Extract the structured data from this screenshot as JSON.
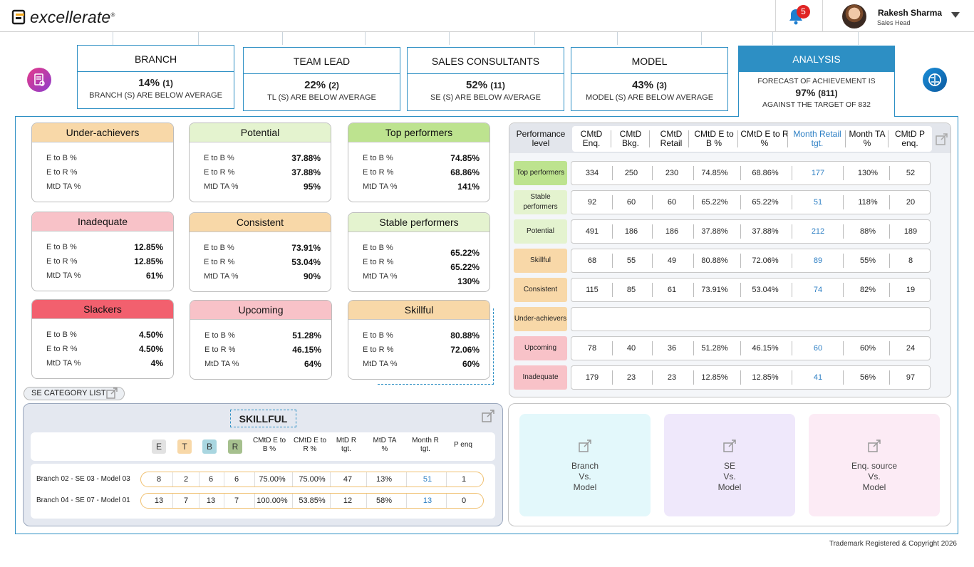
{
  "header": {
    "brand": "excellerate",
    "brand_mark": "®",
    "notifications_count": "5",
    "user_name": "Rakesh Sharma",
    "user_role": "Sales Head"
  },
  "tabs": [
    {
      "title": "BRANCH",
      "pct": "14%",
      "count": "(1)",
      "sub": "BRANCH (S) ARE BELOW AVERAGE"
    },
    {
      "title": "TEAM LEAD",
      "pct": "22%",
      "count": "(2)",
      "sub": "TL (S) ARE BELOW AVERAGE"
    },
    {
      "title": "SALES CONSULTANTS",
      "pct": "52%",
      "count": "(11)",
      "sub": "SE (S) ARE BELOW AVERAGE"
    },
    {
      "title": "MODEL",
      "pct": "43%",
      "count": "(3)",
      "sub": "MODEL (S) ARE BELOW AVERAGE"
    }
  ],
  "analysis": {
    "title": "ANALYSIS",
    "line1": "FORECAST OF ACHIEVEMENT IS",
    "pct": "97%",
    "count": "(811)",
    "line3": "AGAINST THE TARGET OF 832"
  },
  "metric_labels": {
    "eb": "E to B %",
    "er": "E to R %",
    "ta": "MtD TA %"
  },
  "categories": [
    {
      "name": "Under-achievers",
      "eb": "",
      "er": "",
      "ta": "",
      "color": "#f8d8a8"
    },
    {
      "name": "Potential",
      "eb": "37.88%",
      "er": "37.88%",
      "ta": "95%",
      "color": "#e4f3cf"
    },
    {
      "name": "Top performers",
      "eb": "74.85%",
      "er": "68.86%",
      "ta": "141%",
      "color": "#bde38f"
    },
    {
      "name": "Inadequate",
      "eb": "12.85%",
      "er": "12.85%",
      "ta": "61%",
      "color": "#f8c2c8"
    },
    {
      "name": "Consistent",
      "eb": "73.91%",
      "er": "53.04%",
      "ta": "90%",
      "color": "#f8d8a8"
    },
    {
      "name": "Stable performers",
      "eb": "65.22%",
      "er": "65.22%",
      "ta": "130%",
      "color": "#e4f3cf"
    },
    {
      "name": "Slackers",
      "eb": "4.50%",
      "er": "4.50%",
      "ta": "4%",
      "color": "#f2606e"
    },
    {
      "name": "Upcoming",
      "eb": "51.28%",
      "er": "46.15%",
      "ta": "64%",
      "color": "#f8c2c8"
    },
    {
      "name": "Skillful",
      "eb": "80.88%",
      "er": "72.06%",
      "ta": "60%",
      "color": "#f8d8a8"
    }
  ],
  "perf_table": {
    "headers": [
      "Performance level",
      "CMtD Enq.",
      "CMtD Bkg.",
      "CMtD Retail",
      "CMtD E to B %",
      "CMtD E to R %",
      "Month Retail tgt.",
      "Month TA %",
      "CMtD P enq."
    ],
    "rows": [
      {
        "label": "Top performers",
        "color": "#bde38f",
        "cells": [
          "334",
          "250",
          "230",
          "74.85%",
          "68.86%",
          "177",
          "130%",
          "52"
        ]
      },
      {
        "label": "Stable performers",
        "color": "#e4f3cf",
        "cells": [
          "92",
          "60",
          "60",
          "65.22%",
          "65.22%",
          "51",
          "118%",
          "20"
        ]
      },
      {
        "label": "Potential",
        "color": "#e4f3cf",
        "cells": [
          "491",
          "186",
          "186",
          "37.88%",
          "37.88%",
          "212",
          "88%",
          "189"
        ]
      },
      {
        "label": "Skillful",
        "color": "#f8d8a8",
        "cells": [
          "68",
          "55",
          "49",
          "80.88%",
          "72.06%",
          "89",
          "55%",
          "8"
        ]
      },
      {
        "label": "Consistent",
        "color": "#f8d8a8",
        "cells": [
          "115",
          "85",
          "61",
          "73.91%",
          "53.04%",
          "74",
          "82%",
          "19"
        ]
      },
      {
        "label": "Under-achievers",
        "color": "#f8d8a8",
        "cells": []
      },
      {
        "label": "Upcoming",
        "color": "#f8c2c8",
        "cells": [
          "78",
          "40",
          "36",
          "51.28%",
          "46.15%",
          "60",
          "60%",
          "24"
        ]
      },
      {
        "label": "Inadequate",
        "color": "#f8c2c8",
        "cells": [
          "179",
          "23",
          "23",
          "12.85%",
          "12.85%",
          "41",
          "56%",
          "97"
        ]
      }
    ]
  },
  "se_category_list": "SE CATEGORY LIST",
  "skillful_panel": {
    "title": "SKILLFUL",
    "badges": [
      "E",
      "T",
      "B",
      "R"
    ],
    "badge_colors": [
      "#e2e2e2",
      "#f8d8a8",
      "#a9d6e0",
      "#a6c08e"
    ],
    "headers": [
      "CMtD E to B %",
      "CMtD E to R %",
      "MtD R tgt.",
      "MtD TA %",
      "Month R tgt.",
      "P enq"
    ],
    "rows": [
      {
        "label": "Branch 02 - SE 03 - Model 03",
        "cells": [
          "8",
          "2",
          "6",
          "6",
          "75.00%",
          "75.00%",
          "47",
          "13%",
          "51",
          "1"
        ]
      },
      {
        "label": "Branch 04 - SE 07 - Model 01",
        "cells": [
          "13",
          "7",
          "13",
          "7",
          "100.00%",
          "53.85%",
          "12",
          "58%",
          "13",
          "0"
        ]
      }
    ]
  },
  "compare_cards": [
    {
      "l1": "Branch",
      "l2": "Vs.",
      "l3": "Model",
      "color": "#e3f8fb"
    },
    {
      "l1": "SE",
      "l2": "Vs.",
      "l3": "Model",
      "color": "#efe8fb"
    },
    {
      "l1": "Enq. source",
      "l2": "Vs.",
      "l3": "Model",
      "color": "#fcebf5"
    }
  ],
  "footer": "Trademark Registered & Copyright 2026"
}
